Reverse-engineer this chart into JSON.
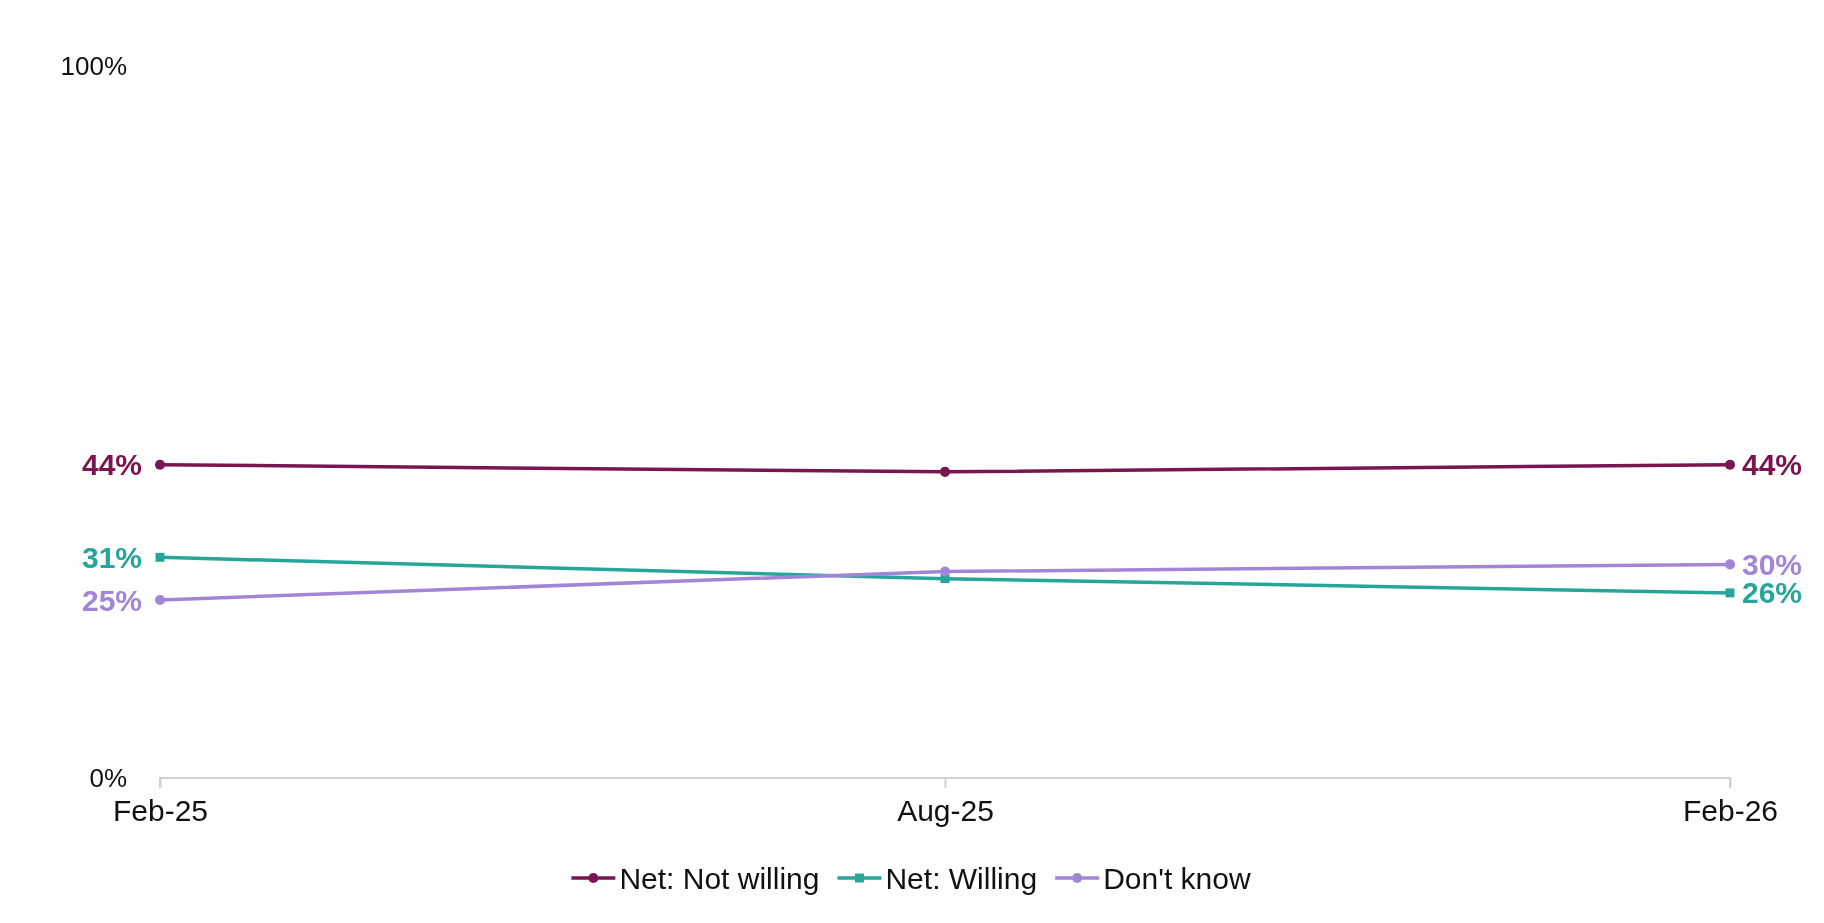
{
  "chart_data": {
    "type": "line",
    "categories": [
      "Feb-25",
      "Aug-25",
      "Feb-26"
    ],
    "ylim": [
      0,
      100
    ],
    "yticks": [
      {
        "value": 0,
        "label": "0%"
      },
      {
        "value": 100,
        "label": "100%"
      }
    ],
    "grid": false,
    "legend": "bottom",
    "series": [
      {
        "name": "Net: Not willing",
        "color": "#7a1552",
        "marker": "circle",
        "values": [
          44,
          43,
          44
        ],
        "value_labels": [
          "44%",
          null,
          "44%"
        ]
      },
      {
        "name": "Net: Willing",
        "color": "#26a69a",
        "marker": "square",
        "values": [
          31,
          28,
          26
        ],
        "value_labels": [
          "31%",
          null,
          "26%"
        ]
      },
      {
        "name": "Don't know",
        "color": "#a385d8",
        "marker": "circle",
        "values": [
          25,
          29,
          30
        ],
        "value_labels": [
          "25%",
          null,
          "30%"
        ]
      }
    ]
  }
}
